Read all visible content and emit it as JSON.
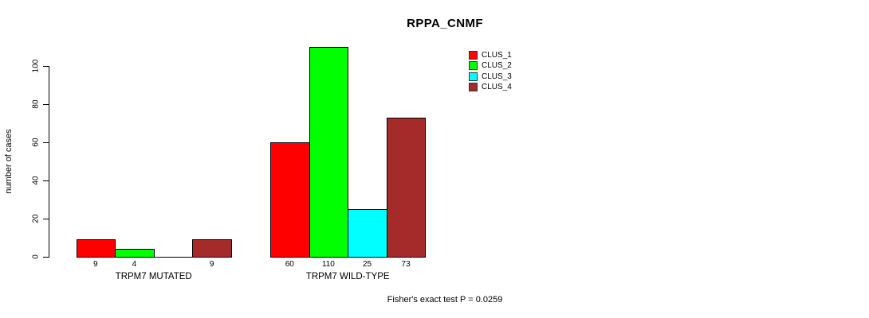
{
  "chart_data": {
    "type": "bar",
    "title": "RPPA_CNMF",
    "ylabel": "number of cases",
    "xlabel": "",
    "yticks": [
      0,
      20,
      40,
      60,
      80,
      100
    ],
    "ylim": [
      0,
      110
    ],
    "grid": false,
    "legend_position": "top-right",
    "categories": [
      "TRPM7 MUTATED",
      "TRPM7 WILD-TYPE"
    ],
    "series": [
      {
        "name": "CLUS_1",
        "color": "#ff0000",
        "values": [
          9,
          60
        ]
      },
      {
        "name": "CLUS_2",
        "color": "#00ff00",
        "values": [
          4,
          110
        ]
      },
      {
        "name": "CLUS_3",
        "color": "#00ffff",
        "values": [
          0,
          25
        ]
      },
      {
        "name": "CLUS_4",
        "color": "#a52a2a",
        "values": [
          9,
          73
        ]
      }
    ],
    "bar_value_labels": [
      [
        "9",
        "4",
        "",
        "9"
      ],
      [
        "60",
        "110",
        "25",
        "73"
      ]
    ],
    "annotation": "Fisher's exact test P = 0.0259"
  },
  "colors": {
    "axis": "#000000",
    "text": "#000000",
    "background": "#ffffff"
  }
}
